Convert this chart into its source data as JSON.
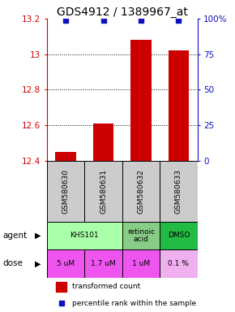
{
  "title": "GDS4912 / 1389967_at",
  "samples": [
    "GSM580630",
    "GSM580631",
    "GSM580632",
    "GSM580633"
  ],
  "bar_values": [
    12.45,
    12.61,
    13.08,
    13.02
  ],
  "percentile_values": [
    99,
    99,
    99,
    99
  ],
  "ylim_left": [
    12.4,
    13.2
  ],
  "ylim_right": [
    0,
    100
  ],
  "yticks_left": [
    12.4,
    12.6,
    12.8,
    13.0,
    13.2
  ],
  "yticks_right": [
    0,
    25,
    50,
    75,
    100
  ],
  "ytick_labels_left": [
    "12.4",
    "12.6",
    "12.8",
    "13",
    "13.2"
  ],
  "ytick_labels_right": [
    "0",
    "25",
    "50",
    "75",
    "100%"
  ],
  "bar_color": "#cc0000",
  "percentile_color": "#1111bb",
  "dose_row": [
    "5 uM",
    "1.7 uM",
    "1 uM",
    "0.1 %"
  ],
  "dose_colors": [
    "#ee44ee",
    "#ee44ee",
    "#dd88dd",
    "#ee99ee"
  ],
  "sample_bg": "#cccccc",
  "agent_spans": [
    {
      "label": "KHS101",
      "cols": [
        0,
        1
      ],
      "color": "#aaffaa"
    },
    {
      "label": "retinoic\nacid",
      "cols": [
        2
      ],
      "color": "#88cc88"
    },
    {
      "label": "DMSO",
      "cols": [
        3
      ],
      "color": "#22bb44"
    }
  ],
  "left_axis_color": "#cc0000",
  "right_axis_color": "#1111bb",
  "title_fontsize": 10,
  "tick_fontsize": 7.5,
  "cell_fontsize": 6.5,
  "legend_fontsize": 6.5
}
